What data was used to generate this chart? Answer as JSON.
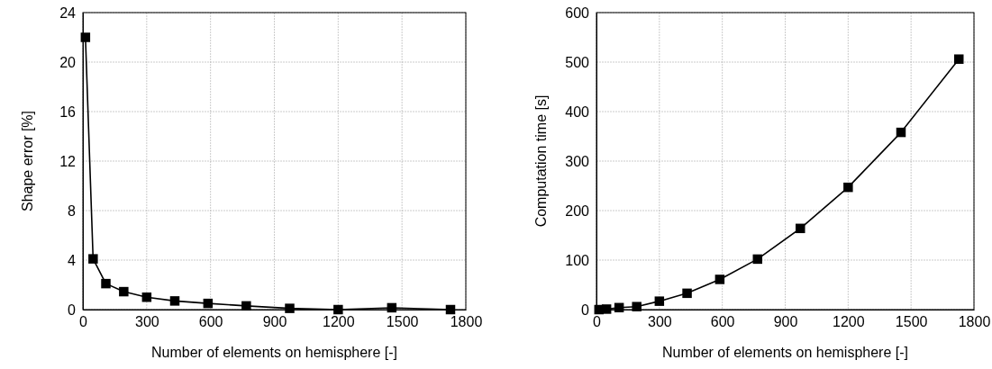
{
  "chart_data": [
    {
      "type": "line",
      "xlabel": "Number of elements on hemisphere [-]",
      "ylabel": "Shape error [%]",
      "x": [
        12,
        48,
        108,
        192,
        300,
        432,
        588,
        768,
        972,
        1200,
        1452,
        1728
      ],
      "series": [
        {
          "color": "#000000",
          "values": [
            22.0,
            4.1,
            2.1,
            1.45,
            1.0,
            0.7,
            0.5,
            0.3,
            0.1,
            0.0,
            0.15,
            0.0
          ]
        }
      ],
      "xlim": [
        0,
        1800
      ],
      "xticks": [
        0,
        300,
        600,
        900,
        1200,
        1500,
        1800
      ],
      "ylim": [
        0,
        24
      ],
      "yticks": [
        0,
        4,
        8,
        12,
        16,
        20,
        24
      ],
      "grid": true,
      "marker": "square",
      "line_style": "solid"
    },
    {
      "type": "line",
      "xlabel": "Number of elements on hemisphere [-]",
      "ylabel": "Computation time [s]",
      "x": [
        12,
        48,
        108,
        192,
        300,
        432,
        588,
        768,
        972,
        1200,
        1452,
        1728
      ],
      "series": [
        {
          "color": "#000000",
          "values": [
            0,
            1,
            4,
            6,
            17,
            33,
            61,
            102,
            164,
            247,
            358,
            506
          ]
        }
      ],
      "xlim": [
        0,
        1800
      ],
      "xticks": [
        0,
        300,
        600,
        900,
        1200,
        1500,
        1800
      ],
      "ylim": [
        0,
        600
      ],
      "yticks": [
        0,
        100,
        200,
        300,
        400,
        500,
        600
      ],
      "grid": true,
      "marker": "square",
      "line_style": "solid"
    }
  ]
}
